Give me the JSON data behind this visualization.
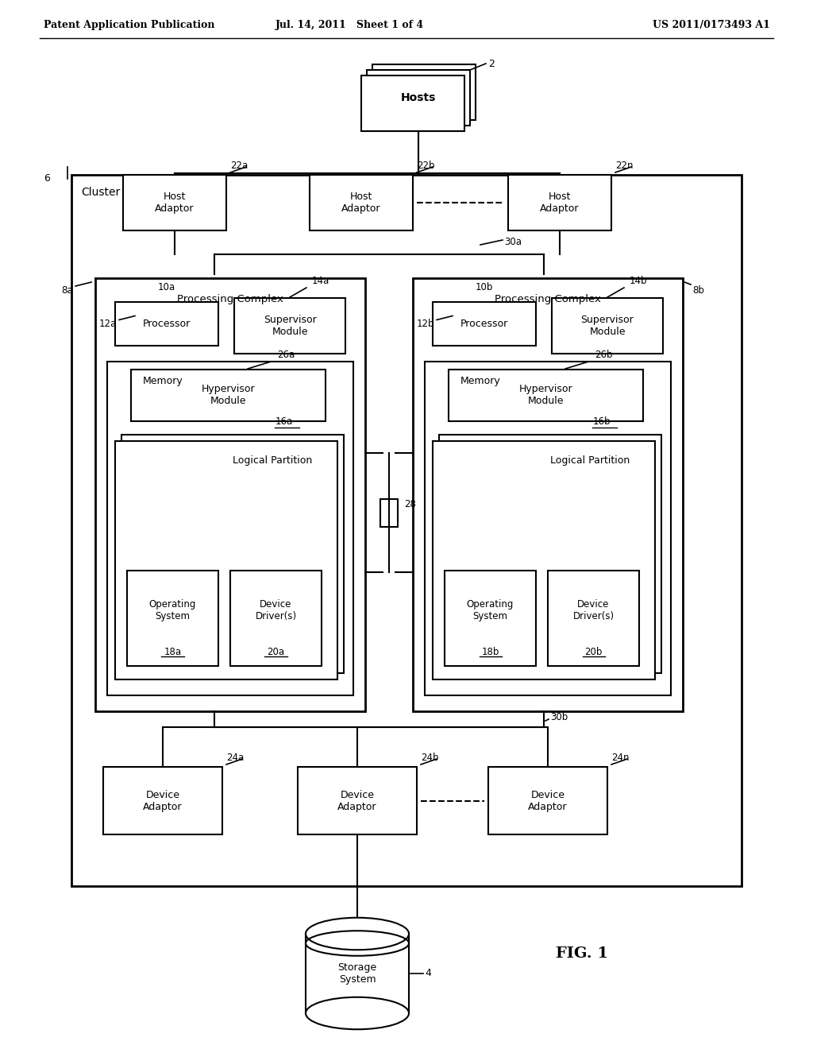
{
  "bg_color": "#ffffff",
  "line_color": "#000000",
  "header_left": "Patent Application Publication",
  "header_mid": "Jul. 14, 2011   Sheet 1 of 4",
  "header_right": "US 2011/0173493 A1",
  "fig_label": "FIG. 1",
  "footer_label": "4",
  "storage_label": "Storage\nSystem",
  "cluster_label": "Cluster",
  "cluster_ref": "6",
  "hosts_label": "Hosts",
  "hosts_ref": "2",
  "pc_left_label": "Processing Complex",
  "pc_right_label": "Processing Complex",
  "pc_left_ref": "8a",
  "pc_right_ref": "8b",
  "proc_a_label": "Processor",
  "proc_a_ref": "10a",
  "proc_b_label": "Processor",
  "proc_b_ref": "10b",
  "sup_a_label": "Supervisor\nModule",
  "sup_a_ref": "14a",
  "sup_b_label": "Supervisor\nModule",
  "sup_b_ref": "14b",
  "mem_a_label": "Memory",
  "mem_a_ref": "12a",
  "mem_b_label": "Memory",
  "mem_b_ref": "12b",
  "hyp_a_label": "Hypervisor\nModule",
  "hyp_a_ref": "26a",
  "hyp_b_label": "Hypervisor\nModule",
  "hyp_b_ref": "26b",
  "lp_a_label": "Logical Partition",
  "lp_a_ref": "16a",
  "lp_b_label": "Logical Partition",
  "lp_b_ref": "16b",
  "os_a_label": "Operating\nSystem\n",
  "os_a_ref": "18a",
  "os_b_label": "Operating\nSystem\n",
  "os_b_ref": "18b",
  "dd_a_label": "Device\nDriver(s)\n",
  "dd_a_ref": "20a",
  "dd_b_label": "Device\nDriver(s)\n",
  "dd_b_ref": "20b",
  "ha_a_label": "Host\nAdaptor",
  "ha_a_ref": "22a",
  "ha_b_label": "Host\nAdaptor",
  "ha_b_ref": "22b",
  "ha_n_label": "Host\nAdaptor",
  "ha_n_ref": "22n",
  "da_a_label": "Device\nAdaptor",
  "da_a_ref": "24a",
  "da_b_label": "Device\nAdaptor",
  "da_b_ref": "24b",
  "da_n_label": "Device\nAdaptor",
  "da_n_ref": "24n",
  "bus_top_ref_a": "30a",
  "bus_bot_ref_b": "30b",
  "interconnect_ref": "28"
}
